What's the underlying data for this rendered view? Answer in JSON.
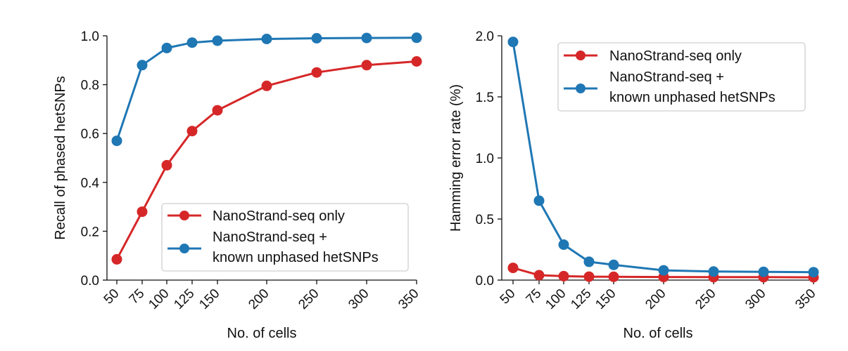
{
  "chart_data": [
    {
      "type": "line",
      "xlabel": "No. of cells",
      "ylabel": "Recall of phased hetSNPs",
      "x": [
        50,
        75,
        100,
        125,
        150,
        200,
        250,
        300,
        350
      ],
      "x_tick_labels": [
        "50",
        "75",
        "100",
        "125",
        "150",
        "200",
        "250",
        "300",
        "350"
      ],
      "ylim": [
        0,
        1.0
      ],
      "y_ticks": [
        0.0,
        0.2,
        0.4,
        0.6,
        0.8,
        1.0
      ],
      "y_tick_labels": [
        "0.0",
        "0.2",
        "0.4",
        "0.6",
        "0.8",
        "1.0"
      ],
      "legend_position": "lower-right",
      "series": [
        {
          "name_lines": [
            "NanoStrand-seq only"
          ],
          "color": "#d62728",
          "values": [
            0.085,
            0.28,
            0.47,
            0.61,
            0.695,
            0.795,
            0.85,
            0.88,
            0.895
          ]
        },
        {
          "name_lines": [
            "NanoStrand-seq +",
            "known unphased hetSNPs"
          ],
          "color": "#1f77b4",
          "values": [
            0.57,
            0.88,
            0.95,
            0.972,
            0.98,
            0.987,
            0.99,
            0.991,
            0.992
          ]
        }
      ]
    },
    {
      "type": "line",
      "xlabel": "No. of cells",
      "ylabel": "Hamming error rate (%)",
      "x": [
        50,
        75,
        100,
        125,
        150,
        200,
        250,
        300,
        350
      ],
      "x_tick_labels": [
        "50",
        "75",
        "100",
        "125",
        "150",
        "200",
        "250",
        "300",
        "350"
      ],
      "ylim": [
        0,
        2.0
      ],
      "y_ticks": [
        0.0,
        0.5,
        1.0,
        1.5,
        2.0
      ],
      "y_tick_labels": [
        "0.0",
        "0.5",
        "1.0",
        "1.5",
        "2.0"
      ],
      "legend_position": "upper-right",
      "series": [
        {
          "name_lines": [
            "NanoStrand-seq only"
          ],
          "color": "#d62728",
          "values": [
            0.1,
            0.04,
            0.032,
            0.028,
            0.027,
            0.025,
            0.024,
            0.024,
            0.023
          ]
        },
        {
          "name_lines": [
            "NanoStrand-seq +",
            "known unphased hetSNPs"
          ],
          "color": "#1f77b4",
          "values": [
            1.95,
            0.65,
            0.29,
            0.15,
            0.125,
            0.08,
            0.07,
            0.068,
            0.065
          ]
        }
      ]
    }
  ]
}
